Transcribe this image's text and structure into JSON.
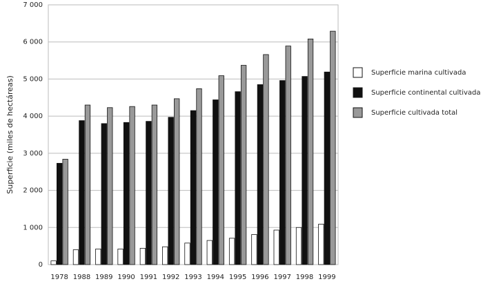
{
  "chart_data": {
    "type": "bar",
    "y_label": "Superficie (miles de hectáreas)",
    "categories": [
      "1978",
      "1988",
      "1989",
      "1990",
      "1991",
      "1992",
      "1993",
      "1994",
      "1995",
      "1996",
      "1997",
      "1998",
      "1999"
    ],
    "series": [
      {
        "name": "Superficie marina cultivada",
        "color": "#ffffff",
        "values": [
          100,
          400,
          420,
          420,
          440,
          480,
          580,
          650,
          710,
          810,
          930,
          1000,
          1090
        ]
      },
      {
        "name": "Superficie continental cultivada",
        "color": "#111111",
        "values": [
          2730,
          3880,
          3800,
          3830,
          3860,
          3970,
          4150,
          4440,
          4660,
          4850,
          4960,
          5070,
          5190
        ]
      },
      {
        "name": "Superficie cultivada total",
        "color": "#999999",
        "values": [
          2840,
          4300,
          4230,
          4260,
          4300,
          4470,
          4740,
          5090,
          5370,
          5660,
          5890,
          6080,
          6290
        ]
      }
    ],
    "ylim": [
      0,
      7000
    ],
    "yticks": [
      0,
      {
        "value": 1000,
        "label": "1 000"
      },
      {
        "value": 2000,
        "label": "2 000"
      },
      {
        "value": 3000,
        "label": "3 000"
      },
      {
        "value": 4000,
        "label": "4 000"
      },
      {
        "value": 5000,
        "label": "5 000"
      },
      {
        "value": 6000,
        "label": "6 000"
      },
      {
        "value": 7000,
        "label": "7 000"
      }
    ],
    "grid": true
  }
}
